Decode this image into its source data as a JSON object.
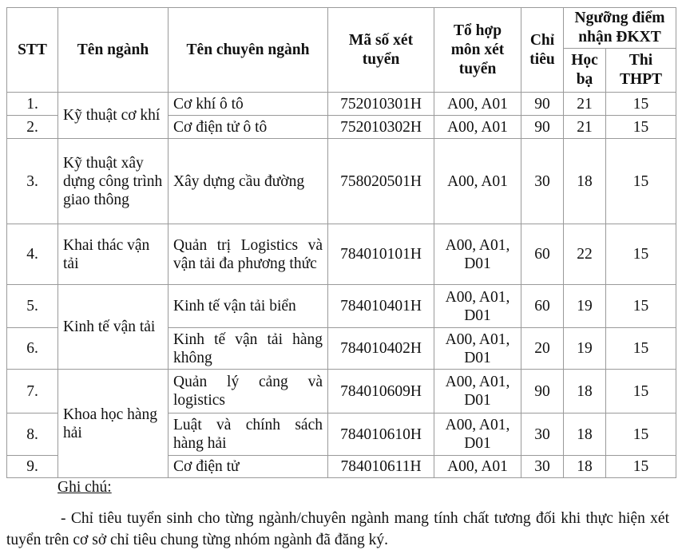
{
  "table": {
    "headers": {
      "stt": "STT",
      "nganh": "Tên ngành",
      "chuyen_nganh": "Tên chuyên ngành",
      "ma_so": "Mã số xét tuyển",
      "to_hop": "Tổ hợp môn xét tuyển",
      "chi_tieu": "Chỉ tiêu",
      "nguong": "Ngưỡng điểm nhận ĐKXT",
      "hoc_ba": "Học bạ",
      "thpt": "Thi THPT"
    },
    "groups": [
      "Kỹ thuật cơ khí",
      "Kỹ thuật xây dựng công trình giao thông",
      "Khai thác vận tải",
      "Kinh tế vận tải",
      "Khoa học hàng hải"
    ],
    "rows": [
      {
        "stt": "1.",
        "chuyen_nganh": "Cơ khí ô tô",
        "ma": "752010301H",
        "to_hop": "A00, A01",
        "chi_tieu": "90",
        "hoc_ba": "21",
        "thpt": "15"
      },
      {
        "stt": "2.",
        "chuyen_nganh": "Cơ điện tử ô tô",
        "ma": "752010302H",
        "to_hop": "A00, A01",
        "chi_tieu": "90",
        "hoc_ba": "21",
        "thpt": "15"
      },
      {
        "stt": "3.",
        "chuyen_nganh": "Xây dựng cầu đường",
        "ma": "758020501H",
        "to_hop": "A00, A01",
        "chi_tieu": "30",
        "hoc_ba": "18",
        "thpt": "15"
      },
      {
        "stt": "4.",
        "chuyen_nganh": "Quản trị Logistics và vận tải đa phương thức",
        "ma": "784010101H",
        "to_hop": "A00, A01, D01",
        "chi_tieu": "60",
        "hoc_ba": "22",
        "thpt": "15"
      },
      {
        "stt": "5.",
        "chuyen_nganh": "Kinh tế vận tải biển",
        "ma": "784010401H",
        "to_hop": "A00, A01, D01",
        "chi_tieu": "60",
        "hoc_ba": "19",
        "thpt": "15"
      },
      {
        "stt": "6.",
        "chuyen_nganh": "Kinh tế vận tải hàng không",
        "ma": "784010402H",
        "to_hop": "A00, A01, D01",
        "chi_tieu": "20",
        "hoc_ba": "19",
        "thpt": "15"
      },
      {
        "stt": "7.",
        "chuyen_nganh": "Quản lý cảng và logistics",
        "ma": "784010609H",
        "to_hop": "A00, A01, D01",
        "chi_tieu": "90",
        "hoc_ba": "18",
        "thpt": "15"
      },
      {
        "stt": "8.",
        "chuyen_nganh": "Luật và chính sách hàng hải",
        "ma": "784010610H",
        "to_hop": "A00, A01, D01",
        "chi_tieu": "30",
        "hoc_ba": "18",
        "thpt": "15"
      },
      {
        "stt": "9.",
        "chuyen_nganh": "Cơ điện tử",
        "ma": "784010611H",
        "to_hop": "A00, A01",
        "chi_tieu": "30",
        "hoc_ba": "18",
        "thpt": "15"
      }
    ]
  },
  "note": {
    "title": "Ghi chú:",
    "text": "- Chỉ tiêu tuyển sinh cho từng ngành/chuyên ngành mang tính chất tương đối khi thực hiện xét tuyển trên cơ sở chỉ tiêu chung từng nhóm ngành đã đăng ký."
  }
}
